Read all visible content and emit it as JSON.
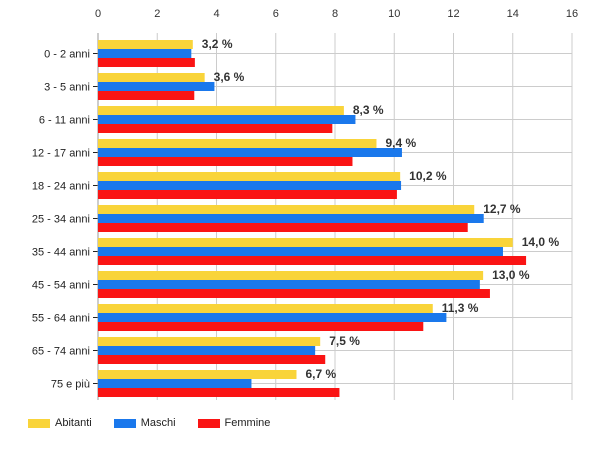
{
  "chart_data": {
    "type": "bar",
    "orientation": "horizontal",
    "categories": [
      "0 - 2 anni",
      "3 - 5 anni",
      "6 - 11 anni",
      "12 - 17 anni",
      "18 - 24 anni",
      "25 - 34 anni",
      "35 - 44 anni",
      "45 - 54 anni",
      "55 - 64 anni",
      "65 - 74 anni",
      "75 e più"
    ],
    "series": [
      {
        "name": "Abitanti",
        "color": "#f9d43a",
        "values": [
          3.2,
          3.6,
          8.3,
          9.4,
          10.2,
          12.7,
          14.0,
          13.0,
          11.3,
          7.5,
          6.7
        ],
        "labels": [
          "3,2 %",
          "3,6 %",
          "8,3 %",
          "9,4 %",
          "10,2 %",
          "12,7 %",
          "14,0 %",
          "13,0 %",
          "11,3 %",
          "7,5 %",
          "6,7 %"
        ]
      },
      {
        "name": "Maschi",
        "color": "#1a78ec",
        "values": [
          3.15,
          3.93,
          8.69,
          10.26,
          10.23,
          13.02,
          13.67,
          12.89,
          11.76,
          7.33,
          5.18
        ]
      },
      {
        "name": "Femmine",
        "color": "#fa1414",
        "values": [
          3.27,
          3.25,
          7.91,
          8.59,
          10.09,
          12.48,
          14.45,
          13.23,
          10.98,
          7.67,
          8.15
        ]
      }
    ],
    "xlim": [
      0,
      16
    ],
    "xticks": [
      "0",
      "2",
      "4",
      "6",
      "8",
      "10",
      "12",
      "14",
      "16"
    ],
    "grid": true,
    "legend": "bottom-left"
  }
}
